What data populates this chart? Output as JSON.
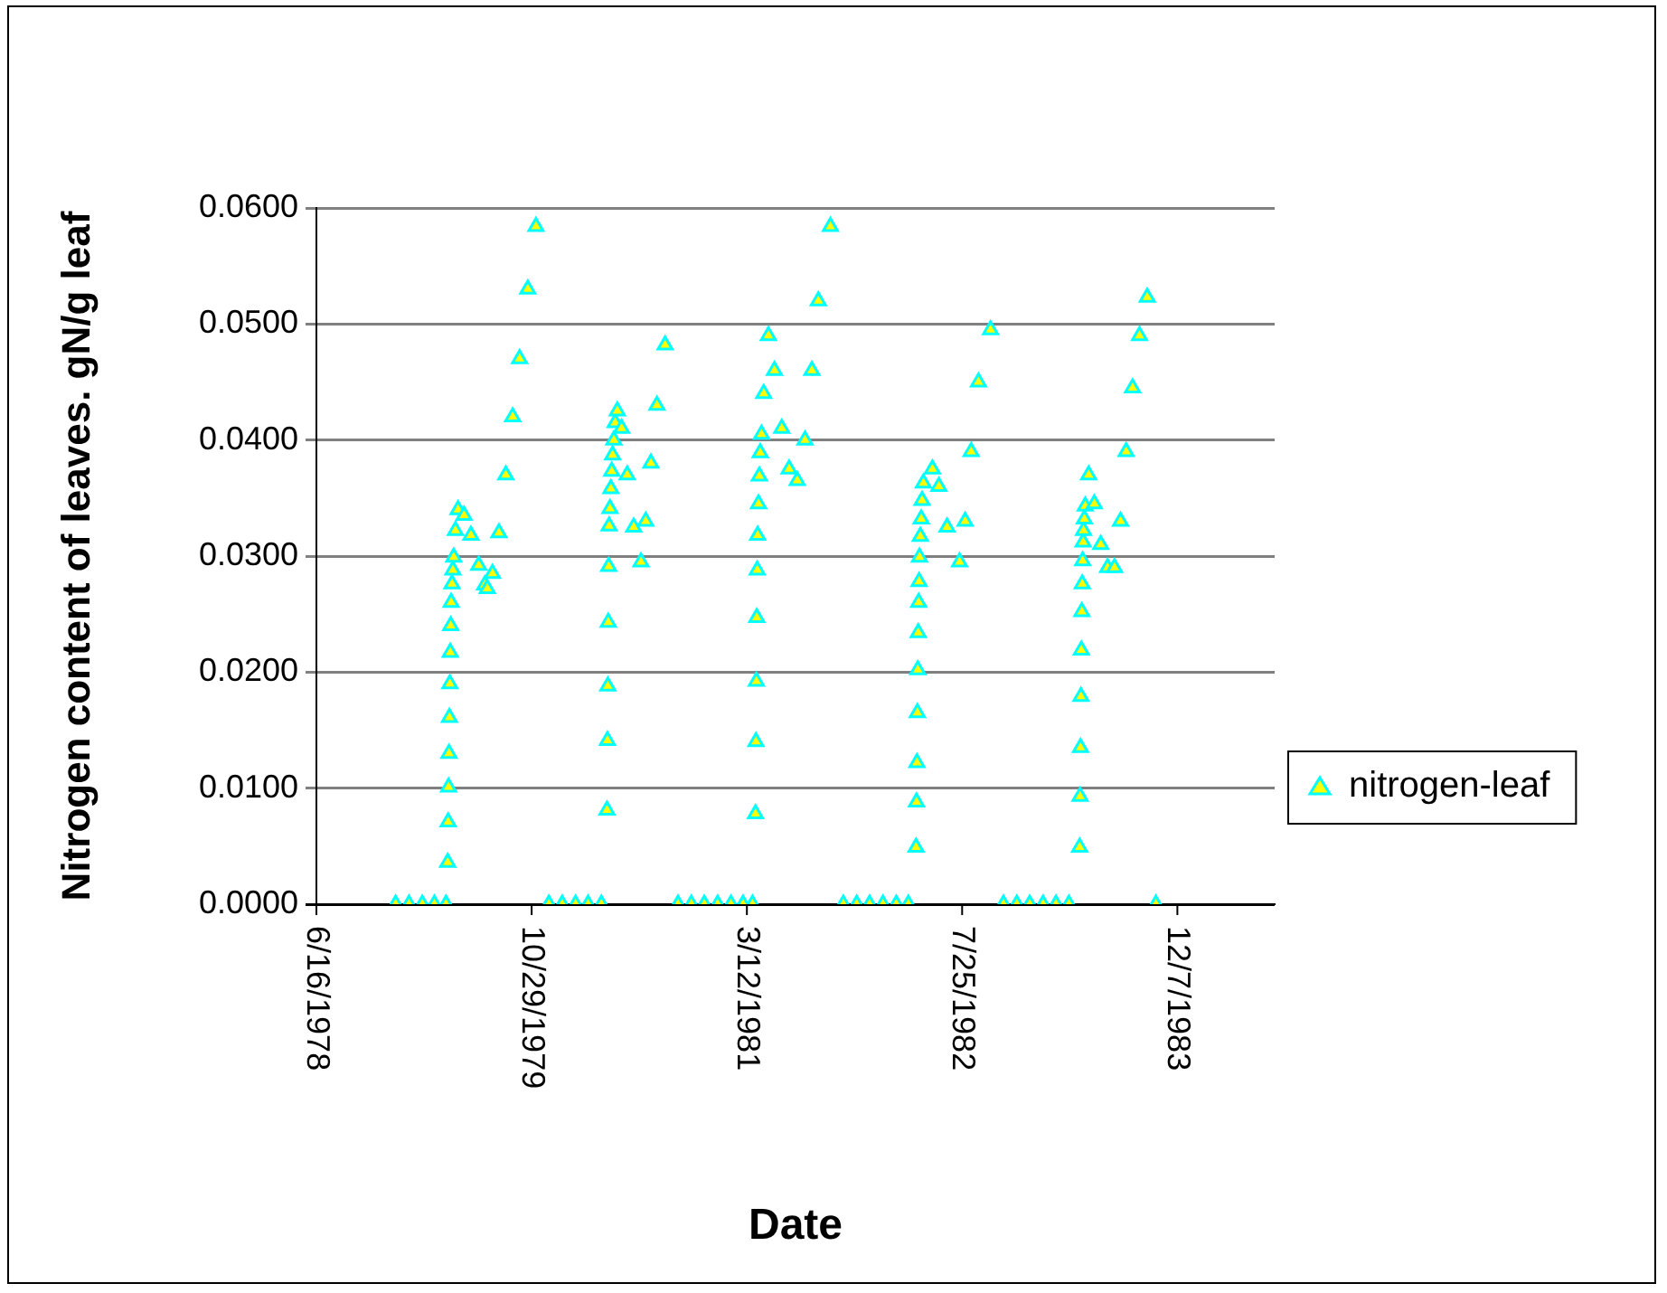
{
  "chart_data": {
    "type": "scatter",
    "xlabel": "Date",
    "ylabel": "Nitrogen content of leaves. gN/g leaf",
    "xlim": [
      "1978-06-16",
      "1984-07-20"
    ],
    "xticks": [
      {
        "value": "1978-06-16",
        "label": "6/16/1978"
      },
      {
        "value": "1979-10-29",
        "label": "10/29/1979"
      },
      {
        "value": "1981-03-12",
        "label": "3/12/1981"
      },
      {
        "value": "1982-07-25",
        "label": "7/25/1982"
      },
      {
        "value": "1983-12-07",
        "label": "12/7/1983"
      }
    ],
    "ylim": [
      0,
      0.06
    ],
    "yticks": [
      {
        "value": 0,
        "label": "0.0000"
      },
      {
        "value": 0.01,
        "label": "0.0100"
      },
      {
        "value": 0.02,
        "label": "0.0200"
      },
      {
        "value": 0.03,
        "label": "0.0300"
      },
      {
        "value": 0.04,
        "label": "0.0400"
      },
      {
        "value": 0.05,
        "label": "0.0500"
      },
      {
        "value": 0.06,
        "label": "0.0600"
      }
    ],
    "grid": "y",
    "legend": "right",
    "marker": "triangle",
    "series": [
      {
        "name": "nitrogen-leaf",
        "color": "#00ffff",
        "x": [
          "1978-12-17",
          "1979-01-17",
          "1979-02-17",
          "1979-03-17",
          "1979-04-13",
          "1979-04-17",
          "1979-04-18",
          "1979-04-19",
          "1979-04-20",
          "1979-04-21",
          "1979-04-22",
          "1979-04-23",
          "1979-04-24",
          "1979-04-25",
          "1979-04-27",
          "1979-04-29",
          "1979-05-01",
          "1979-05-05",
          "1979-05-11",
          "1979-05-25",
          "1979-06-10",
          "1979-06-28",
          "1979-07-12",
          "1979-07-18",
          "1979-07-30",
          "1979-08-14",
          "1979-08-30",
          "1979-09-15",
          "1979-10-01",
          "1979-10-20",
          "1979-11-08",
          "1979-12-08",
          "1980-01-08",
          "1980-02-08",
          "1980-03-08",
          "1980-04-08",
          "1980-04-21",
          "1980-04-22",
          "1980-04-23",
          "1980-04-24",
          "1980-04-25",
          "1980-04-26",
          "1980-04-28",
          "1980-04-30",
          "1980-05-02",
          "1980-05-04",
          "1980-05-07",
          "1980-05-10",
          "1980-05-15",
          "1980-05-25",
          "1980-06-07",
          "1980-06-22",
          "1980-07-09",
          "1980-07-20",
          "1980-08-01",
          "1980-08-15",
          "1980-09-03",
          "1980-10-03",
          "1980-11-03",
          "1980-12-03",
          "1981-01-03",
          "1981-02-03",
          "1981-03-03",
          "1981-03-25",
          "1981-04-01",
          "1981-04-02",
          "1981-04-03",
          "1981-04-04",
          "1981-04-05",
          "1981-04-06",
          "1981-04-08",
          "1981-04-10",
          "1981-04-12",
          "1981-04-15",
          "1981-04-20",
          "1981-05-01",
          "1981-05-15",
          "1981-06-01",
          "1981-06-18",
          "1981-07-07",
          "1981-07-25",
          "1981-08-10",
          "1981-08-25",
          "1981-09-22",
          "1981-10-22",
          "1981-11-22",
          "1981-12-22",
          "1982-01-22",
          "1982-02-22",
          "1982-03-22",
          "1982-04-09",
          "1982-04-10",
          "1982-04-11",
          "1982-04-12",
          "1982-04-13",
          "1982-04-14",
          "1982-04-15",
          "1982-04-16",
          "1982-04-17",
          "1982-04-19",
          "1982-04-21",
          "1982-04-23",
          "1982-04-26",
          "1982-05-17",
          "1982-06-01",
          "1982-06-20",
          "1982-07-19",
          "1982-08-01",
          "1982-08-15",
          "1982-09-01",
          "1982-09-29",
          "1982-10-29",
          "1982-11-29",
          "1982-12-29",
          "1983-01-29",
          "1983-02-28",
          "1983-03-30",
          "1983-04-24",
          "1983-04-25",
          "1983-04-26",
          "1983-04-27",
          "1983-04-28",
          "1983-04-29",
          "1983-04-30",
          "1983-05-01",
          "1983-05-02",
          "1983-05-03",
          "1983-05-05",
          "1983-05-07",
          "1983-05-15",
          "1983-05-28",
          "1983-06-12",
          "1983-06-28",
          "1983-07-14",
          "1983-07-28",
          "1983-08-10",
          "1983-08-25",
          "1983-09-10",
          "1983-09-28",
          "1983-10-18"
        ],
        "values": [
          0,
          0,
          0,
          0,
          0,
          0.0036,
          0.0071,
          0.0101,
          0.013,
          0.0161,
          0.019,
          0.0217,
          0.024,
          0.026,
          0.0276,
          0.0288,
          0.0299,
          0.0322,
          0.034,
          0.0335,
          0.0318,
          0.0292,
          0.0275,
          0.0272,
          0.0285,
          0.032,
          0.037,
          0.042,
          0.047,
          0.053,
          0.0584,
          0,
          0,
          0,
          0,
          0,
          0.0081,
          0.0141,
          0.0188,
          0.0243,
          0.0291,
          0.0326,
          0.0341,
          0.0358,
          0.0373,
          0.0387,
          0.04,
          0.0415,
          0.0425,
          0.041,
          0.037,
          0.0325,
          0.0295,
          0.033,
          0.038,
          0.043,
          0.0482,
          0,
          0,
          0,
          0,
          0,
          0,
          0,
          0.0078,
          0.014,
          0.0192,
          0.0247,
          0.0288,
          0.0318,
          0.0345,
          0.0369,
          0.0389,
          0.0405,
          0.044,
          0.049,
          0.046,
          0.041,
          0.0375,
          0.0365,
          0.04,
          0.046,
          0.052,
          0.0584,
          0,
          0,
          0,
          0,
          0,
          0,
          0.0049,
          0.0088,
          0.0122,
          0.0165,
          0.0202,
          0.0234,
          0.026,
          0.0278,
          0.0299,
          0.0317,
          0.0332,
          0.0348,
          0.0363,
          0.0375,
          0.036,
          0.0325,
          0.0295,
          0.033,
          0.039,
          0.045,
          0.0495,
          0,
          0,
          0,
          0,
          0,
          0,
          0.0049,
          0.0093,
          0.0135,
          0.0179,
          0.0219,
          0.0252,
          0.0276,
          0.0296,
          0.0312,
          0.0322,
          0.0332,
          0.0343,
          0.037,
          0.0345,
          0.031,
          0.029,
          0.029,
          0.033,
          0.039,
          0.0445,
          0.049,
          0.0523,
          0
        ]
      }
    ]
  }
}
